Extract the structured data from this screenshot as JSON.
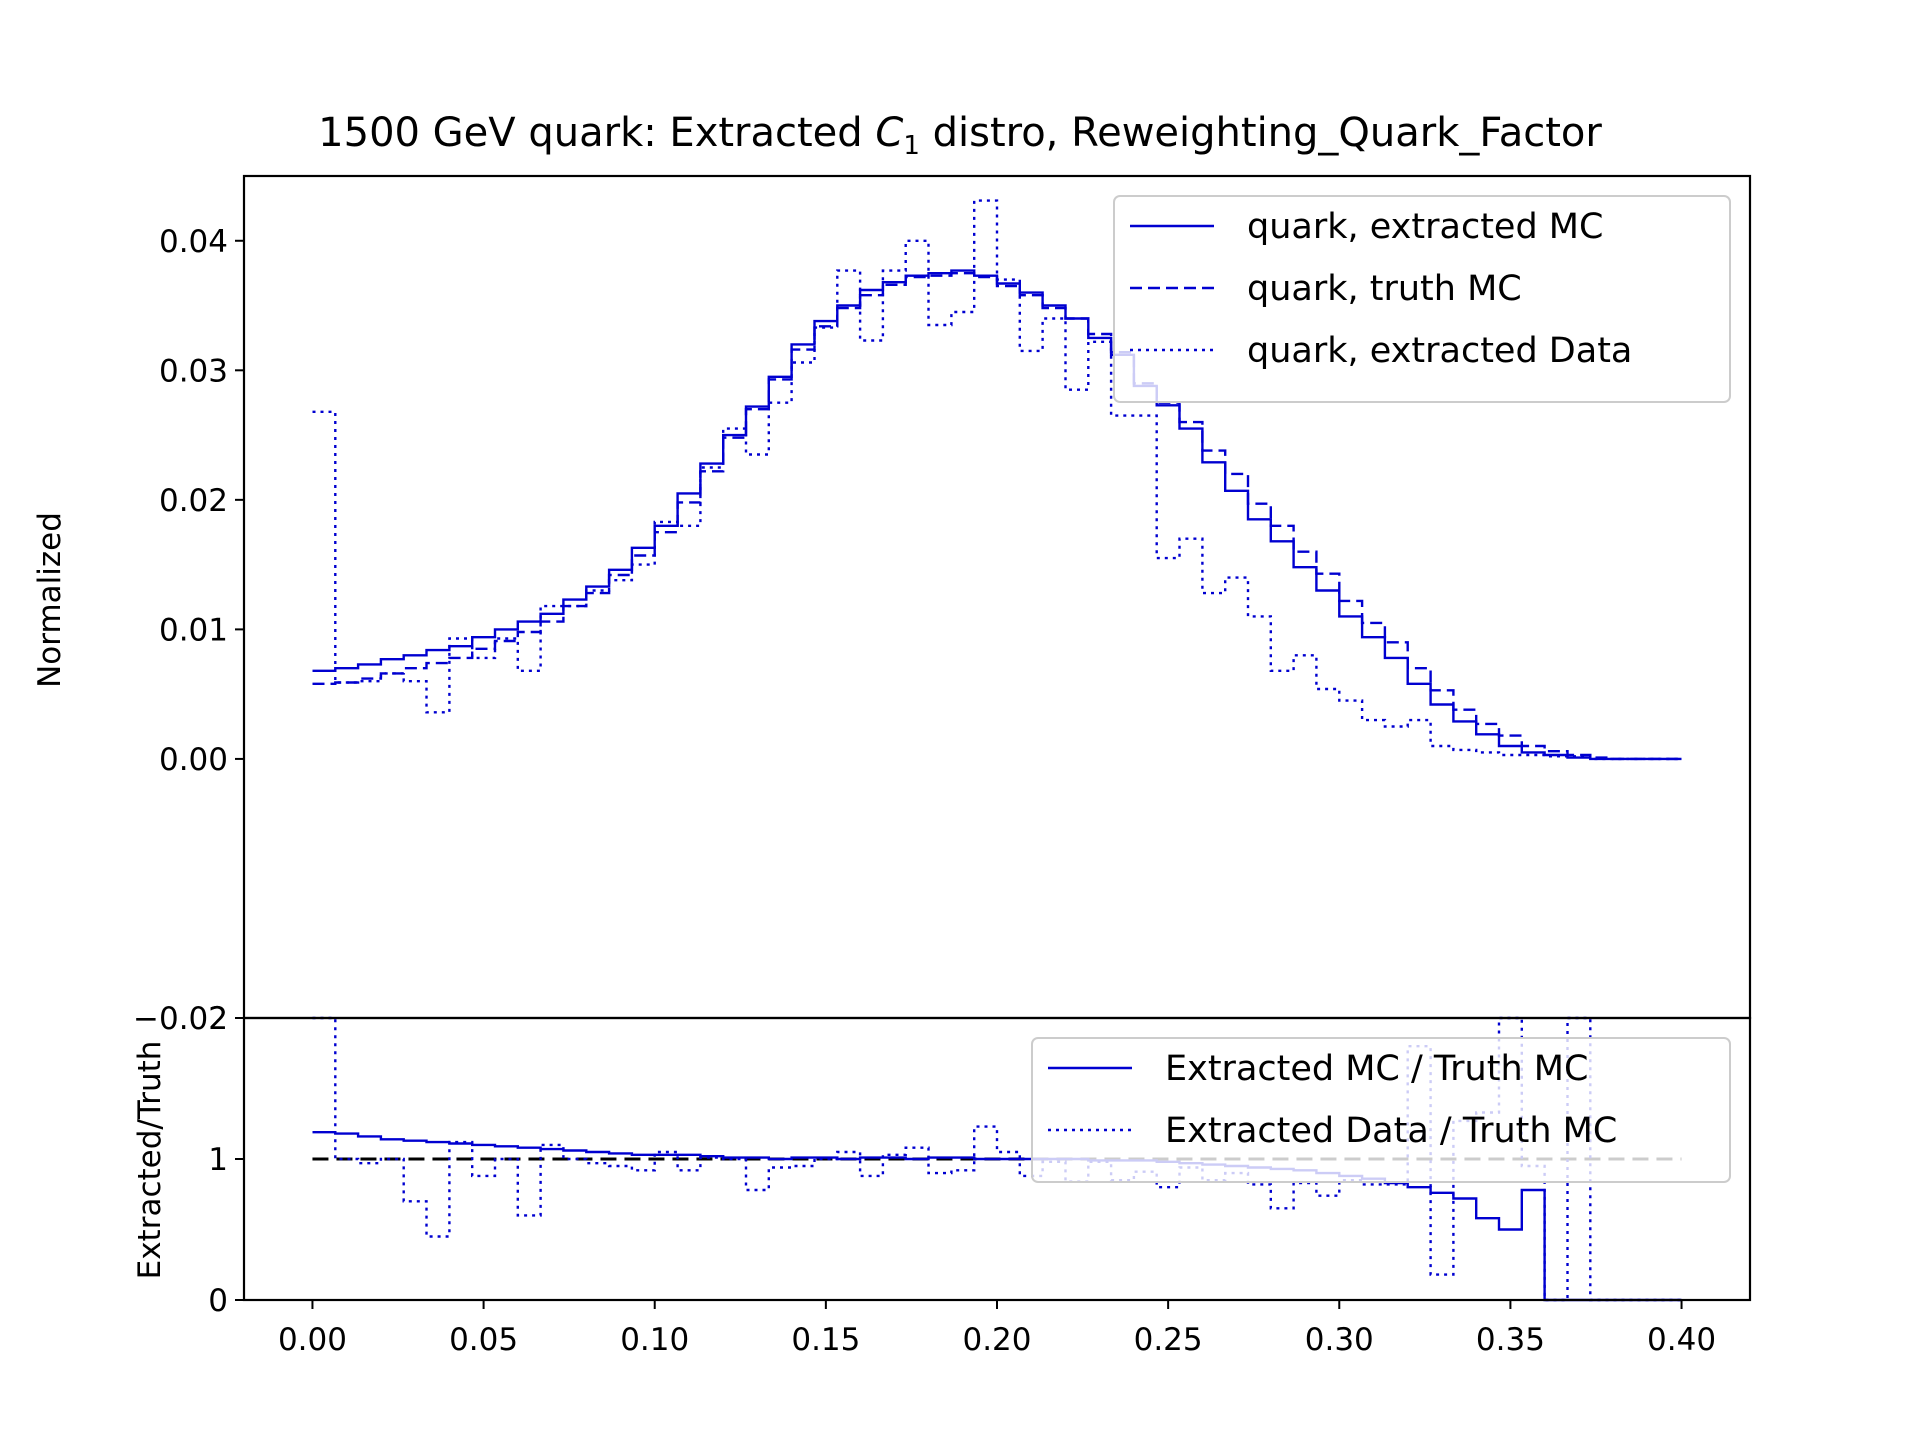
{
  "chart_data": {
    "type": "line",
    "title": "1500 GeV quark: Extracted C₁ distro, Reweighting_Quark_Factor",
    "title_parts": [
      "1500 GeV quark: Extracted ",
      "C",
      "1",
      " distro, Reweighting_Quark_Factor"
    ],
    "colors": {
      "series": "#0000d0",
      "reference": "#000000",
      "axes": "#000000"
    },
    "grid": false,
    "bin_width": 0.00667,
    "x": [
      0.0,
      0.00667,
      0.01333,
      0.02,
      0.02667,
      0.03333,
      0.04,
      0.04667,
      0.05333,
      0.06,
      0.06667,
      0.07333,
      0.08,
      0.08667,
      0.09333,
      0.1,
      0.10667,
      0.11333,
      0.12,
      0.12667,
      0.13333,
      0.14,
      0.14667,
      0.15333,
      0.16,
      0.16667,
      0.17333,
      0.18,
      0.18667,
      0.19333,
      0.2,
      0.20667,
      0.21333,
      0.22,
      0.22667,
      0.23333,
      0.24,
      0.24667,
      0.25333,
      0.26,
      0.26667,
      0.27333,
      0.28,
      0.28667,
      0.29333,
      0.3,
      0.30667,
      0.31333,
      0.32,
      0.32667,
      0.33333,
      0.34,
      0.34667,
      0.35333,
      0.36,
      0.36667,
      0.37333,
      0.38,
      0.38667,
      0.39333,
      0.4
    ],
    "panels": [
      {
        "name": "main",
        "ylabel": "Normalized",
        "xlabel": "",
        "xlim": [
          -0.02,
          0.42
        ],
        "ylim": [
          -0.02,
          0.045
        ],
        "yticks": [
          {
            "value": 0.04,
            "label": "0.04"
          },
          {
            "value": 0.03,
            "label": "0.03"
          },
          {
            "value": 0.02,
            "label": "0.02"
          },
          {
            "value": 0.01,
            "label": "0.01"
          },
          {
            "value": 0.0,
            "label": "0.00"
          },
          {
            "value": -0.02,
            "label": "−0.02"
          }
        ],
        "legend": "top-right",
        "series": [
          {
            "name": "quark, extracted MC",
            "linestyle": "solid",
            "values": [
              0.0068,
              0.007,
              0.0073,
              0.0077,
              0.008,
              0.0084,
              0.0087,
              0.0094,
              0.01,
              0.0106,
              0.0112,
              0.0123,
              0.0133,
              0.0146,
              0.0163,
              0.018,
              0.0205,
              0.0228,
              0.025,
              0.0272,
              0.0295,
              0.032,
              0.0338,
              0.035,
              0.0362,
              0.0368,
              0.0373,
              0.0375,
              0.0377,
              0.0373,
              0.0367,
              0.036,
              0.035,
              0.034,
              0.0325,
              0.0312,
              0.0288,
              0.0273,
              0.0255,
              0.0229,
              0.0207,
              0.0185,
              0.0168,
              0.0148,
              0.013,
              0.011,
              0.0094,
              0.0078,
              0.0058,
              0.0042,
              0.0029,
              0.0019,
              0.001,
              0.0005,
              0.0003,
              0.0001,
              0.0,
              0.0,
              0.0,
              0.0
            ]
          },
          {
            "name": "quark, truth MC",
            "linestyle": "dashed",
            "values": [
              0.0058,
              0.0059,
              0.0062,
              0.0066,
              0.007,
              0.0074,
              0.0078,
              0.0085,
              0.0091,
              0.0098,
              0.0106,
              0.0118,
              0.0128,
              0.0142,
              0.0157,
              0.0175,
              0.0198,
              0.0222,
              0.0248,
              0.027,
              0.0293,
              0.0316,
              0.0334,
              0.0348,
              0.0358,
              0.0366,
              0.0372,
              0.0373,
              0.0375,
              0.0372,
              0.0365,
              0.0358,
              0.0348,
              0.034,
              0.0328,
              0.0314,
              0.029,
              0.0275,
              0.026,
              0.0238,
              0.022,
              0.0197,
              0.018,
              0.016,
              0.0143,
              0.0122,
              0.0105,
              0.009,
              0.007,
              0.0053,
              0.0038,
              0.0027,
              0.0018,
              0.001,
              0.0006,
              0.0003,
              0.0001,
              0.0,
              0.0,
              0.0
            ]
          },
          {
            "name": "quark, extracted Data",
            "linestyle": "dotted",
            "values": [
              0.0268,
              0.0059,
              0.006,
              0.0066,
              0.006,
              0.0036,
              0.0093,
              0.0078,
              0.0093,
              0.0068,
              0.0118,
              0.0118,
              0.013,
              0.0138,
              0.015,
              0.0183,
              0.018,
              0.0225,
              0.0255,
              0.0235,
              0.0275,
              0.0306,
              0.0333,
              0.0377,
              0.0323,
              0.0377,
              0.04,
              0.0335,
              0.0345,
              0.0431,
              0.037,
              0.0315,
              0.034,
              0.0285,
              0.0322,
              0.0265,
              0.0265,
              0.0155,
              0.017,
              0.0128,
              0.014,
              0.011,
              0.0068,
              0.008,
              0.0054,
              0.0045,
              0.003,
              0.0025,
              0.003,
              0.001,
              0.0007,
              0.0005,
              0.0003,
              0.0003,
              0.0002,
              0.0002,
              0.0,
              0.0,
              0.0,
              0.0
            ]
          }
        ]
      },
      {
        "name": "ratio",
        "ylabel": "Extracted/Truth",
        "xlabel": "",
        "xlim": [
          -0.02,
          0.42
        ],
        "ylim": [
          0,
          2
        ],
        "yticks": [
          {
            "value": 2,
            "label": "2"
          },
          {
            "value": 1,
            "label": "1"
          },
          {
            "value": 0,
            "label": "0"
          }
        ],
        "xticks": [
          {
            "value": 0.0,
            "label": "0.00"
          },
          {
            "value": 0.05,
            "label": "0.05"
          },
          {
            "value": 0.1,
            "label": "0.10"
          },
          {
            "value": 0.15,
            "label": "0.15"
          },
          {
            "value": 0.2,
            "label": "0.20"
          },
          {
            "value": 0.25,
            "label": "0.25"
          },
          {
            "value": 0.3,
            "label": "0.30"
          },
          {
            "value": 0.35,
            "label": "0.35"
          },
          {
            "value": 0.4,
            "label": "0.40"
          }
        ],
        "reference_line": 1,
        "legend": "top-right",
        "series": [
          {
            "name": "Extracted MC / Truth MC",
            "linestyle": "solid",
            "values": [
              1.19,
              1.18,
              1.16,
              1.14,
              1.13,
              1.12,
              1.11,
              1.1,
              1.09,
              1.08,
              1.07,
              1.06,
              1.05,
              1.04,
              1.03,
              1.03,
              1.03,
              1.02,
              1.01,
              1.01,
              1.0,
              1.01,
              1.01,
              1.0,
              1.01,
              1.01,
              1.0,
              1.01,
              1.01,
              1.0,
              1.0,
              1.0,
              1.0,
              1.0,
              0.99,
              0.99,
              0.99,
              0.98,
              0.97,
              0.96,
              0.95,
              0.94,
              0.93,
              0.92,
              0.9,
              0.88,
              0.86,
              0.83,
              0.8,
              0.76,
              0.72,
              0.58,
              0.5,
              0.78,
              0.0,
              0.0,
              0.0,
              0.0,
              0.0,
              0.0
            ]
          },
          {
            "name": "Extracted Data / Truth MC",
            "linestyle": "dotted",
            "values": [
              2.0,
              1.0,
              0.97,
              1.0,
              0.7,
              0.45,
              1.12,
              0.88,
              1.0,
              0.6,
              1.1,
              1.0,
              0.97,
              0.95,
              0.92,
              1.05,
              0.92,
              1.01,
              1.0,
              0.78,
              0.94,
              0.95,
              1.0,
              1.05,
              0.88,
              1.03,
              1.08,
              0.9,
              0.92,
              1.23,
              1.05,
              0.88,
              0.98,
              0.84,
              0.98,
              0.85,
              0.91,
              0.8,
              0.94,
              0.85,
              0.9,
              0.82,
              0.65,
              0.83,
              0.74,
              0.85,
              0.82,
              0.82,
              1.8,
              0.18,
              1.27,
              1.33,
              2.0,
              0.95,
              0.0,
              2.0,
              0.0,
              0.0,
              0.0,
              0.0
            ]
          }
        ]
      }
    ]
  }
}
